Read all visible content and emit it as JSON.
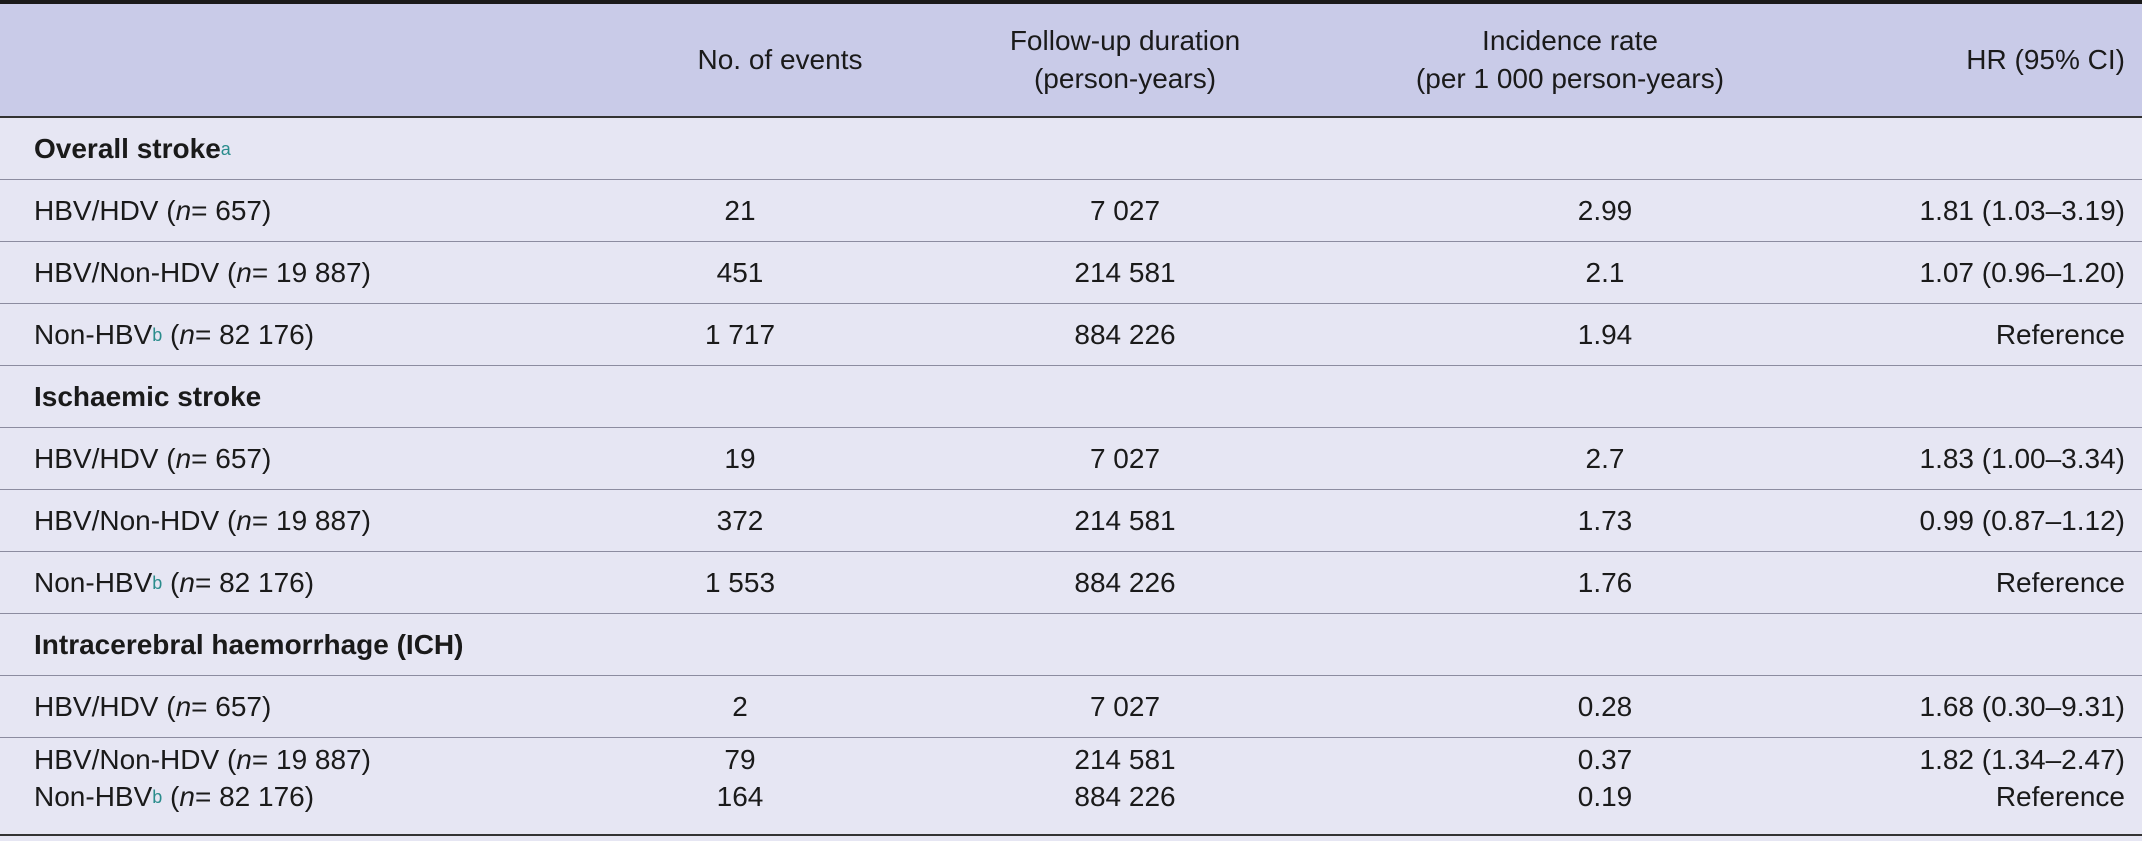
{
  "header": {
    "events": "No. of events",
    "follow_line1": "Follow-up duration",
    "follow_line2": "(person-years)",
    "incid_line1": "Incidence rate",
    "incid_line2": "(per 1 000 person-years)",
    "hr": "HR (95% CI)"
  },
  "n_symbol": "n",
  "footnotes": {
    "a": "a",
    "b": "b"
  },
  "sections": [
    {
      "title": "Overall stroke",
      "rows": [
        {
          "group": "HBV/HDV",
          "n_text": " = 657",
          "events": "21",
          "follow": "7 027",
          "incidence": "2.99",
          "hr": "1.81 (1.03–3.19)"
        },
        {
          "group": "HBV/Non-HDV",
          "n_text": " = 19 887",
          "events": "451",
          "follow": "214 581",
          "incidence": "2.1",
          "hr": "1.07 (0.96–1.20)"
        },
        {
          "group": "Non-HBV",
          "n_text": " = 82 176",
          "events": "1 717",
          "follow": "884 226",
          "incidence": "1.94",
          "hr": "Reference"
        }
      ]
    },
    {
      "title": "Ischaemic stroke",
      "rows": [
        {
          "group": "HBV/HDV",
          "n_text": " = 657",
          "events": "19",
          "follow": "7 027",
          "incidence": "2.7",
          "hr": "1.83 (1.00–3.34)"
        },
        {
          "group": "HBV/Non-HDV",
          "n_text": " = 19 887",
          "events": "372",
          "follow": "214 581",
          "incidence": "1.73",
          "hr": "0.99 (0.87–1.12)"
        },
        {
          "group": "Non-HBV",
          "n_text": " = 82 176",
          "events": "1 553",
          "follow": "884 226",
          "incidence": "1.76",
          "hr": "Reference"
        }
      ]
    },
    {
      "title": "Intracerebral haemorrhage (ICH)",
      "rows": [
        {
          "group": "HBV/HDV",
          "n_text": " = 657",
          "events": "2",
          "follow": "7 027",
          "incidence": "0.28",
          "hr": "1.68 (0.30–9.31)"
        },
        {
          "group": "HBV/Non-HDV",
          "n_text": " = 19 887",
          "events": "79",
          "follow": "214 581",
          "incidence": "0.37",
          "hr": "1.82 (1.34–2.47)"
        },
        {
          "group": "Non-HBV",
          "n_text": " = 82 176",
          "events": "164",
          "follow": "884 226",
          "incidence": "0.19",
          "hr": "Reference"
        }
      ]
    }
  ]
}
